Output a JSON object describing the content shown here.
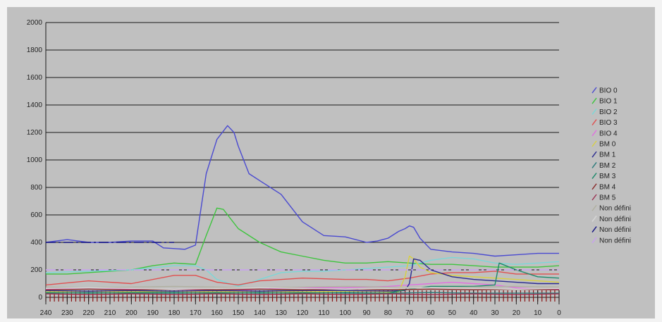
{
  "chart_data": {
    "type": "line",
    "title": "",
    "xlabel": "",
    "ylabel": "",
    "xlim": [
      240,
      0
    ],
    "ylim": [
      0,
      2000
    ],
    "x_reversed": true,
    "grid": "horizontal",
    "legend_position": "right",
    "yticks": [
      0,
      200,
      400,
      600,
      800,
      1000,
      1200,
      1400,
      1600,
      1800,
      2000
    ],
    "xticks": [
      240,
      230,
      220,
      210,
      200,
      190,
      180,
      170,
      160,
      150,
      140,
      130,
      120,
      110,
      100,
      90,
      80,
      70,
      60,
      50,
      40,
      30,
      20,
      10,
      0
    ],
    "series": [
      {
        "name": "BIO 0",
        "color": "#4a4ad0",
        "style": "solid",
        "x": [
          240,
          230,
          220,
          210,
          200,
          190,
          185,
          175,
          170,
          165,
          160,
          155,
          152,
          150,
          145,
          140,
          130,
          120,
          110,
          100,
          90,
          85,
          80,
          75,
          72,
          70,
          68,
          65,
          60,
          50,
          40,
          30,
          20,
          10,
          0
        ],
        "y": [
          400,
          420,
          400,
          400,
          410,
          410,
          360,
          350,
          380,
          900,
          1150,
          1250,
          1200,
          1100,
          900,
          850,
          750,
          550,
          450,
          440,
          400,
          410,
          430,
          480,
          500,
          520,
          510,
          430,
          350,
          330,
          320,
          300,
          310,
          320,
          320
        ]
      },
      {
        "name": "BIO 1",
        "color": "#3ec43e",
        "style": "solid",
        "x": [
          240,
          230,
          220,
          210,
          200,
          190,
          180,
          170,
          165,
          160,
          157,
          150,
          140,
          130,
          120,
          110,
          100,
          90,
          80,
          70,
          60,
          50,
          40,
          30,
          20,
          10,
          0
        ],
        "y": [
          170,
          170,
          180,
          190,
          200,
          230,
          250,
          240,
          450,
          650,
          640,
          500,
          400,
          330,
          300,
          270,
          250,
          250,
          260,
          250,
          240,
          240,
          230,
          220,
          220,
          220,
          230
        ]
      },
      {
        "name": "BIO 2",
        "color": "#7ad8d8",
        "style": "solid",
        "x": [
          240,
          220,
          200,
          180,
          170,
          165,
          160,
          150,
          140,
          130,
          120,
          110,
          100,
          90,
          80,
          70,
          65,
          60,
          50,
          40,
          30,
          20,
          10,
          0
        ],
        "y": [
          180,
          190,
          200,
          230,
          230,
          200,
          130,
          80,
          130,
          180,
          190,
          190,
          200,
          210,
          220,
          230,
          250,
          270,
          290,
          280,
          250,
          240,
          250,
          260
        ]
      },
      {
        "name": "BIO 3",
        "color": "#e05050",
        "style": "solid",
        "x": [
          240,
          220,
          200,
          180,
          170,
          160,
          150,
          140,
          120,
          100,
          90,
          80,
          70,
          60,
          50,
          40,
          30,
          20,
          10,
          0
        ],
        "y": [
          90,
          120,
          100,
          160,
          160,
          110,
          90,
          120,
          140,
          130,
          130,
          120,
          140,
          170,
          180,
          180,
          190,
          170,
          170,
          170
        ]
      },
      {
        "name": "BIO 4",
        "color": "#e070e0",
        "style": "solid",
        "x": [
          240,
          220,
          200,
          180,
          160,
          150,
          140,
          120,
          100,
          80,
          70,
          60,
          50,
          40,
          30,
          20,
          10,
          0
        ],
        "y": [
          60,
          70,
          60,
          60,
          50,
          50,
          60,
          70,
          70,
          80,
          90,
          100,
          110,
          100,
          90,
          70,
          60,
          60
        ]
      },
      {
        "name": "BM 0",
        "color": "#d8d040",
        "style": "solid",
        "x": [
          240,
          220,
          200,
          180,
          160,
          140,
          120,
          100,
          90,
          80,
          75,
          72,
          70,
          68,
          65,
          60,
          50,
          40,
          30,
          20,
          10,
          0
        ],
        "y": [
          40,
          45,
          40,
          45,
          40,
          45,
          40,
          45,
          45,
          40,
          40,
          150,
          300,
          280,
          220,
          180,
          160,
          150,
          140,
          130,
          120,
          110
        ]
      },
      {
        "name": "BM 1",
        "color": "#2a2a90",
        "style": "solid",
        "x": [
          240,
          220,
          200,
          180,
          160,
          140,
          120,
          100,
          80,
          72,
          70,
          68,
          65,
          60,
          50,
          40,
          30,
          20,
          10,
          0
        ],
        "y": [
          50,
          45,
          50,
          45,
          50,
          45,
          50,
          50,
          45,
          50,
          100,
          280,
          270,
          200,
          150,
          130,
          120,
          110,
          100,
          100
        ]
      },
      {
        "name": "BM 2",
        "color": "#2a7a7a",
        "style": "solid",
        "x": [
          240,
          220,
          200,
          180,
          160,
          140,
          120,
          100,
          80,
          60,
          40,
          20,
          0
        ],
        "y": [
          30,
          35,
          30,
          30,
          35,
          30,
          35,
          30,
          30,
          35,
          30,
          30,
          30
        ]
      },
      {
        "name": "BM 3",
        "color": "#1c8a6a",
        "style": "solid",
        "x": [
          240,
          220,
          200,
          180,
          160,
          140,
          120,
          100,
          80,
          70,
          60,
          50,
          40,
          30,
          28,
          20,
          10,
          0
        ],
        "y": [
          35,
          30,
          35,
          35,
          30,
          35,
          30,
          35,
          30,
          60,
          80,
          80,
          80,
          90,
          250,
          200,
          150,
          140
        ]
      },
      {
        "name": "BM 4",
        "color": "#8a2a2a",
        "style": "solid",
        "x": [
          240,
          220,
          200,
          180,
          160,
          140,
          120,
          100,
          80,
          60,
          40,
          20,
          0
        ],
        "y": [
          55,
          60,
          55,
          60,
          55,
          60,
          55,
          60,
          55,
          60,
          55,
          60,
          55
        ]
      },
      {
        "name": "BM 5",
        "color": "#9a3050",
        "style": "solid",
        "x": [
          240,
          220,
          200,
          180,
          160,
          140,
          120,
          100,
          80,
          60,
          40,
          20,
          0
        ],
        "y": [
          25,
          20,
          25,
          20,
          25,
          20,
          25,
          20,
          25,
          20,
          25,
          20,
          25
        ]
      },
      {
        "name": "Non défini",
        "color": "#b0b0a0",
        "style": "solid",
        "x": [
          240,
          220,
          200,
          180,
          160,
          140,
          120,
          100,
          80,
          60,
          40,
          20,
          0
        ],
        "y": [
          75,
          70,
          75,
          80,
          75,
          70,
          75,
          80,
          75,
          70,
          75,
          80,
          75
        ]
      },
      {
        "name": "Non défini",
        "color": "#d8d8d8",
        "style": "solid",
        "x": [
          240,
          220,
          200,
          180,
          160,
          140,
          120,
          100,
          80,
          60,
          40,
          20,
          0
        ],
        "y": [
          65,
          70,
          65,
          60,
          65,
          70,
          65,
          60,
          65,
          70,
          65,
          60,
          65
        ]
      },
      {
        "name": "Non défini",
        "color": "#101080",
        "style": "dashed",
        "x": [
          240,
          230,
          220,
          210,
          200,
          190,
          185,
          180
        ],
        "y": [
          400,
          400,
          400,
          400,
          400,
          400,
          400,
          400
        ]
      },
      {
        "name": "Non défini",
        "color": "#c8a0f0",
        "style": "dashed",
        "x": [
          240,
          230,
          220,
          210,
          200,
          190,
          180,
          170,
          160,
          150,
          140,
          130,
          120,
          110,
          100,
          90,
          80,
          70,
          60,
          50,
          40,
          30,
          20,
          10,
          0
        ],
        "y": [
          200,
          200,
          200,
          200,
          200,
          200,
          200,
          200,
          200,
          200,
          200,
          200,
          200,
          200,
          200,
          200,
          200,
          200,
          200,
          200,
          200,
          200,
          200,
          200,
          200
        ]
      }
    ]
  }
}
